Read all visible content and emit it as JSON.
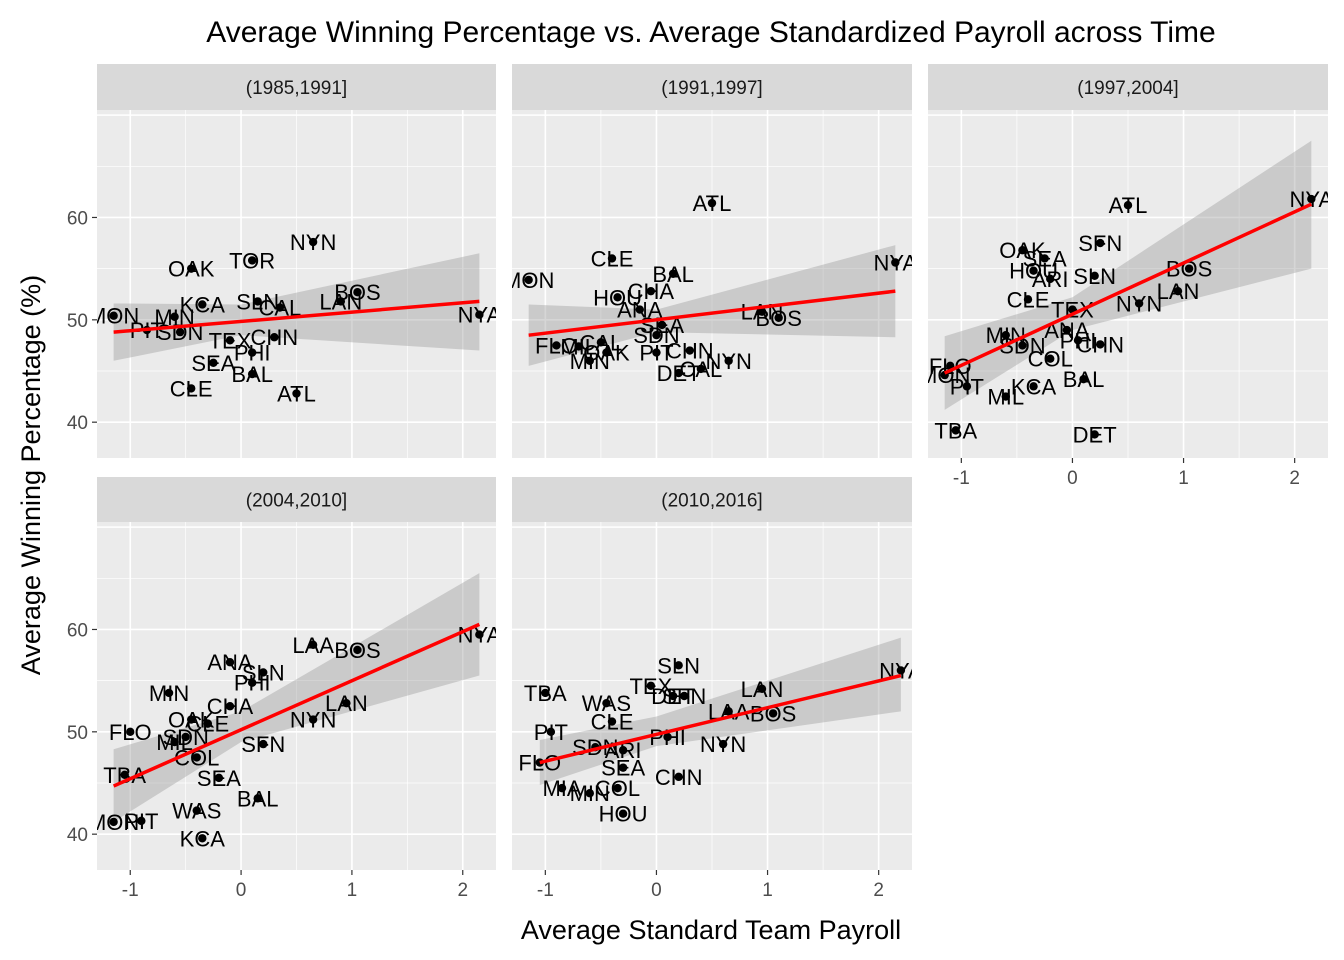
{
  "chart_data": {
    "type": "scatter",
    "title": "Average Winning Percentage vs. Average Standardized Payroll across Time",
    "xlabel": "Average Standard Team Payroll",
    "ylabel": "Average Winning Percentage (%)",
    "xlim": [
      -1.3,
      2.3
    ],
    "ylim": [
      36.5,
      70.5
    ],
    "x_ticks": [
      -1,
      0,
      1,
      2
    ],
    "y_ticks": [
      40,
      50,
      60
    ],
    "grid": true,
    "facets": [
      {
        "label": "(1985,1991]",
        "fit": [
          [
            -1.15,
            48.8
          ],
          [
            2.15,
            51.8
          ]
        ],
        "band": [
          [
            -1.15,
            46.0,
            51.6
          ],
          [
            0.0,
            48.5,
            51.5
          ],
          [
            2.15,
            47.0,
            56.5
          ]
        ],
        "points": [
          {
            "team": "MON",
            "x": -1.15,
            "y": 50.4
          },
          {
            "team": "NYN",
            "x": 0.65,
            "y": 57.6
          },
          {
            "team": "TOR",
            "x": 0.1,
            "y": 55.8
          },
          {
            "team": "OAK",
            "x": -0.45,
            "y": 55.0
          },
          {
            "team": "BOS",
            "x": 1.05,
            "y": 52.7
          },
          {
            "team": "LAN",
            "x": 0.9,
            "y": 51.8
          },
          {
            "team": "KCA",
            "x": -0.35,
            "y": 51.5
          },
          {
            "team": "SLN",
            "x": 0.15,
            "y": 51.8
          },
          {
            "team": "CAL",
            "x": 0.35,
            "y": 51.2
          },
          {
            "team": "MIN",
            "x": -0.6,
            "y": 50.3
          },
          {
            "team": "NYA",
            "x": 2.15,
            "y": 50.5
          },
          {
            "team": "PIT",
            "x": -0.85,
            "y": 49.0
          },
          {
            "team": "SDN",
            "x": -0.55,
            "y": 48.8
          },
          {
            "team": "CHN",
            "x": 0.3,
            "y": 48.3
          },
          {
            "team": "TEX",
            "x": -0.1,
            "y": 48.0
          },
          {
            "team": "PHI",
            "x": 0.1,
            "y": 46.8
          },
          {
            "team": "SEA",
            "x": -0.25,
            "y": 45.8
          },
          {
            "team": "BAL",
            "x": 0.1,
            "y": 44.7
          },
          {
            "team": "CLE",
            "x": -0.45,
            "y": 43.3
          },
          {
            "team": "ATL",
            "x": 0.5,
            "y": 42.8
          }
        ]
      },
      {
        "label": "(1991,1997]",
        "fit": [
          [
            -1.15,
            48.5
          ],
          [
            2.15,
            52.8
          ]
        ],
        "band": [
          [
            -1.15,
            45.5,
            51.5
          ],
          [
            0.0,
            48.8,
            51.0
          ],
          [
            2.15,
            48.3,
            57.3
          ]
        ],
        "points": [
          {
            "team": "ATL",
            "x": 0.5,
            "y": 61.4
          },
          {
            "team": "CLE",
            "x": -0.4,
            "y": 56.0
          },
          {
            "team": "NYA",
            "x": 2.15,
            "y": 55.6
          },
          {
            "team": "MON",
            "x": -1.15,
            "y": 53.9
          },
          {
            "team": "BAL",
            "x": 0.15,
            "y": 54.5
          },
          {
            "team": "CHA",
            "x": -0.05,
            "y": 52.8
          },
          {
            "team": "HOU",
            "x": -0.35,
            "y": 52.2
          },
          {
            "team": "ANA",
            "x": -0.15,
            "y": 51.0
          },
          {
            "team": "LAN",
            "x": 0.95,
            "y": 50.8
          },
          {
            "team": "BOS",
            "x": 1.1,
            "y": 50.2
          },
          {
            "team": "SEA",
            "x": 0.05,
            "y": 49.5
          },
          {
            "team": "SDN",
            "x": 0.0,
            "y": 48.5
          },
          {
            "team": "FLO",
            "x": -0.9,
            "y": 47.5
          },
          {
            "team": "MIL",
            "x": -0.7,
            "y": 47.4
          },
          {
            "team": "CAL",
            "x": -0.5,
            "y": 47.8
          },
          {
            "team": "OAK",
            "x": -0.45,
            "y": 46.8
          },
          {
            "team": "PIT",
            "x": 0.0,
            "y": 46.8
          },
          {
            "team": "CHN",
            "x": 0.3,
            "y": 47.0
          },
          {
            "team": "MIN",
            "x": -0.6,
            "y": 46.0
          },
          {
            "team": "NYN",
            "x": 0.65,
            "y": 46.0
          },
          {
            "team": "DET",
            "x": 0.2,
            "y": 44.8
          },
          {
            "team": "CAL",
            "x": 0.4,
            "y": 45.2
          }
        ]
      },
      {
        "label": "(1997,2004]",
        "fit": [
          [
            -1.15,
            44.8
          ],
          [
            2.15,
            61.3
          ]
        ],
        "band": [
          [
            -1.15,
            41.2,
            48.4
          ],
          [
            0.0,
            49.0,
            52.2
          ],
          [
            2.15,
            55.0,
            67.5
          ]
        ],
        "points": [
          {
            "team": "NYA",
            "x": 2.15,
            "y": 61.8
          },
          {
            "team": "ATL",
            "x": 0.5,
            "y": 61.2
          },
          {
            "team": "SFN",
            "x": 0.25,
            "y": 57.5
          },
          {
            "team": "OAK",
            "x": -0.45,
            "y": 56.8
          },
          {
            "team": "SEA",
            "x": -0.25,
            "y": 56.0
          },
          {
            "team": "HOU",
            "x": -0.35,
            "y": 54.8
          },
          {
            "team": "ARI",
            "x": -0.2,
            "y": 54.0
          },
          {
            "team": "SLN",
            "x": 0.2,
            "y": 54.3
          },
          {
            "team": "BOS",
            "x": 1.05,
            "y": 55.0
          },
          {
            "team": "LAN",
            "x": 0.95,
            "y": 52.8
          },
          {
            "team": "NYN",
            "x": 0.6,
            "y": 51.6
          },
          {
            "team": "CLE",
            "x": -0.4,
            "y": 52.0
          },
          {
            "team": "TEX",
            "x": 0.0,
            "y": 51.0
          },
          {
            "team": "ANA",
            "x": -0.05,
            "y": 49.0
          },
          {
            "team": "MIN",
            "x": -0.6,
            "y": 48.5
          },
          {
            "team": "SDN",
            "x": -0.45,
            "y": 47.5
          },
          {
            "team": "PHI",
            "x": 0.05,
            "y": 48.0
          },
          {
            "team": "CHN",
            "x": 0.25,
            "y": 47.6
          },
          {
            "team": "COL",
            "x": -0.2,
            "y": 46.2
          },
          {
            "team": "FLO",
            "x": -1.1,
            "y": 45.5
          },
          {
            "team": "MON",
            "x": -1.15,
            "y": 44.6
          },
          {
            "team": "PIT",
            "x": -0.95,
            "y": 43.5
          },
          {
            "team": "BAL",
            "x": 0.1,
            "y": 44.2
          },
          {
            "team": "KCA",
            "x": -0.35,
            "y": 43.5
          },
          {
            "team": "MIL",
            "x": -0.6,
            "y": 42.5
          },
          {
            "team": "TBA",
            "x": -1.05,
            "y": 39.2
          },
          {
            "team": "DET",
            "x": 0.2,
            "y": 38.8
          }
        ]
      },
      {
        "label": "(2004,2010]",
        "fit": [
          [
            -1.15,
            44.7
          ],
          [
            2.15,
            60.5
          ]
        ],
        "band": [
          [
            -1.15,
            41.2,
            48.3
          ],
          [
            0.0,
            49.0,
            52.0
          ],
          [
            2.15,
            55.5,
            65.5
          ]
        ],
        "points": [
          {
            "team": "NYA",
            "x": 2.15,
            "y": 59.5
          },
          {
            "team": "LAA",
            "x": 0.65,
            "y": 58.5
          },
          {
            "team": "BOS",
            "x": 1.05,
            "y": 58.0
          },
          {
            "team": "ANA",
            "x": -0.1,
            "y": 56.8
          },
          {
            "team": "SLN",
            "x": 0.2,
            "y": 55.8
          },
          {
            "team": "PHI",
            "x": 0.1,
            "y": 54.8
          },
          {
            "team": "MIN",
            "x": -0.65,
            "y": 53.8
          },
          {
            "team": "CHA",
            "x": -0.1,
            "y": 52.5
          },
          {
            "team": "LAN",
            "x": 0.95,
            "y": 52.8
          },
          {
            "team": "NYN",
            "x": 0.65,
            "y": 51.2
          },
          {
            "team": "OAK",
            "x": -0.45,
            "y": 51.2
          },
          {
            "team": "CLE",
            "x": -0.3,
            "y": 50.8
          },
          {
            "team": "FLO",
            "x": -1.0,
            "y": 50.0
          },
          {
            "team": "SDN",
            "x": -0.5,
            "y": 49.5
          },
          {
            "team": "MIL",
            "x": -0.6,
            "y": 49.0
          },
          {
            "team": "SFN",
            "x": 0.2,
            "y": 48.8
          },
          {
            "team": "COL",
            "x": -0.4,
            "y": 47.5
          },
          {
            "team": "TBA",
            "x": -1.05,
            "y": 45.8
          },
          {
            "team": "SEA",
            "x": -0.2,
            "y": 45.5
          },
          {
            "team": "BAL",
            "x": 0.15,
            "y": 43.5
          },
          {
            "team": "WAS",
            "x": -0.4,
            "y": 42.3
          },
          {
            "team": "PIT",
            "x": -0.9,
            "y": 41.3
          },
          {
            "team": "MON",
            "x": -1.15,
            "y": 41.2
          },
          {
            "team": "KCA",
            "x": -0.35,
            "y": 39.6
          }
        ]
      },
      {
        "label": "(2010,2016]",
        "fit": [
          [
            -1.05,
            47.0
          ],
          [
            2.2,
            55.5
          ]
        ],
        "band": [
          [
            -1.05,
            44.8,
            49.2
          ],
          [
            0.0,
            48.6,
            51.5
          ],
          [
            2.2,
            52.0,
            59.2
          ]
        ],
        "points": [
          {
            "team": "SLN",
            "x": 0.2,
            "y": 56.5
          },
          {
            "team": "NYA",
            "x": 2.2,
            "y": 56.0
          },
          {
            "team": "TBA",
            "x": -1.0,
            "y": 53.8
          },
          {
            "team": "TEX",
            "x": -0.05,
            "y": 54.5
          },
          {
            "team": "SFN",
            "x": 0.25,
            "y": 53.5
          },
          {
            "team": "LAN",
            "x": 0.95,
            "y": 54.2
          },
          {
            "team": "WAS",
            "x": -0.45,
            "y": 52.8
          },
          {
            "team": "DET",
            "x": 0.15,
            "y": 53.5
          },
          {
            "team": "BOS",
            "x": 1.05,
            "y": 51.8
          },
          {
            "team": "LAA",
            "x": 0.65,
            "y": 52.0
          },
          {
            "team": "CLE",
            "x": -0.4,
            "y": 51.0
          },
          {
            "team": "PIT",
            "x": -0.95,
            "y": 50.0
          },
          {
            "team": "PHI",
            "x": 0.1,
            "y": 49.5
          },
          {
            "team": "SDN",
            "x": -0.55,
            "y": 48.5
          },
          {
            "team": "NYN",
            "x": 0.6,
            "y": 48.8
          },
          {
            "team": "ARI",
            "x": -0.3,
            "y": 48.2
          },
          {
            "team": "SEA",
            "x": -0.3,
            "y": 46.5
          },
          {
            "team": "CHN",
            "x": 0.2,
            "y": 45.6
          },
          {
            "team": "FLO",
            "x": -1.05,
            "y": 47.0
          },
          {
            "team": "MIA",
            "x": -0.85,
            "y": 44.5
          },
          {
            "team": "COL",
            "x": -0.35,
            "y": 44.5
          },
          {
            "team": "MIN",
            "x": -0.6,
            "y": 44.0
          },
          {
            "team": "HOU",
            "x": -0.3,
            "y": 42.0
          }
        ]
      }
    ],
    "colors": {
      "panel_bg": "#ebebeb",
      "strip_bg": "#d9d9d9",
      "grid_major": "#ffffff",
      "point": "#000000",
      "fit_line": "#ff0000",
      "band": "#999999"
    }
  }
}
